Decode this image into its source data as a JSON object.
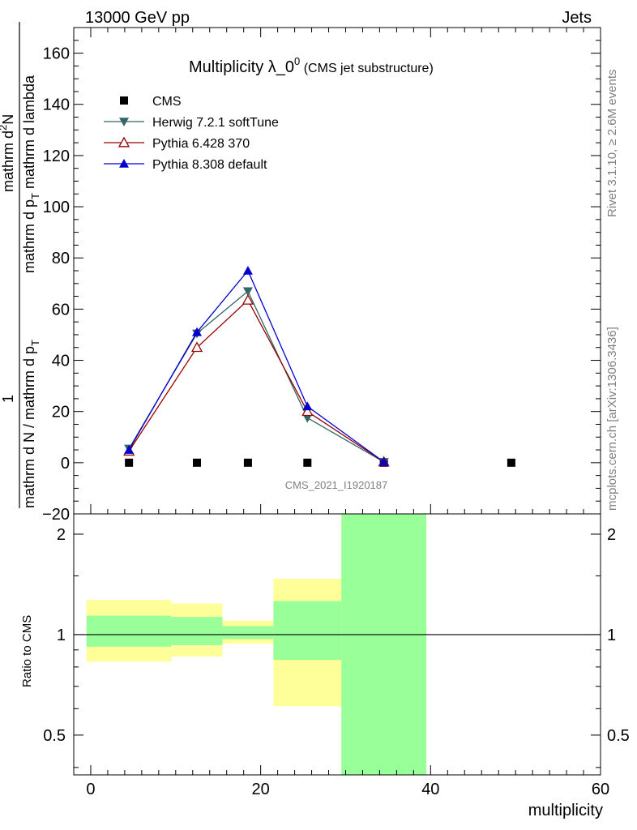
{
  "header": {
    "left": "13000 GeV pp",
    "right": "Jets"
  },
  "side": {
    "rivet": "Rivet 3.1.10, ≥ 2.6M events",
    "mcplots": "mcplots.cern.ch [arXiv:1306.3436]"
  },
  "colors": {
    "cms": "#000000",
    "herwig": "#336666",
    "pythia6": "#990000",
    "pythia8": "#0000cc",
    "band_inner": "#99ff99",
    "band_outer": "#ffff99"
  },
  "chart_data": [
    {
      "type": "line",
      "title_main": "Multiplicity λ_0",
      "title_sup": "0",
      "title_sub": " (CMS jet substructure)",
      "watermark": "CMS_2021_I1920187",
      "ylabel_frac_num": "1",
      "ylabel_frac_den": "mathrm d N / mathrm d p",
      "ylabel_frac_den_sub": "T",
      "ylabel_main": "mathrm d",
      "ylabel_main_sup": "2",
      "ylabel_main_n": "N",
      "ylabel_main_den": "mathrm d p",
      "ylabel_main_den_sub": "T",
      "ylabel_main_den2": " mathrm d lambda",
      "xlim": [
        -2,
        60
      ],
      "ylim": [
        -20,
        170
      ],
      "yticks": [
        {
          "v": -20,
          "label": "−20"
        },
        {
          "v": 0,
          "label": "0"
        },
        {
          "v": 20,
          "label": "20"
        },
        {
          "v": 40,
          "label": "40"
        },
        {
          "v": 60,
          "label": "60"
        },
        {
          "v": 80,
          "label": "80"
        },
        {
          "v": 100,
          "label": "100"
        },
        {
          "v": 120,
          "label": "120"
        },
        {
          "v": 140,
          "label": "140"
        },
        {
          "v": 160,
          "label": "160"
        }
      ],
      "series": [
        {
          "name": "CMS",
          "key": "cms",
          "marker": "square",
          "x": [
            4.5,
            12.5,
            18.5,
            25.5,
            34.5,
            49.5
          ],
          "y": [
            0,
            0,
            0,
            0,
            0,
            0
          ],
          "line": false
        },
        {
          "name": "Herwig 7.2.1 softTune",
          "key": "herwig",
          "marker": "triangle-down",
          "x": [
            4.5,
            12.5,
            18.5,
            25.5,
            34.5
          ],
          "y": [
            5.5,
            50.5,
            67,
            17.5,
            0.3
          ],
          "line": true
        },
        {
          "name": "Pythia 6.428 370",
          "key": "pythia6",
          "marker": "triangle-open",
          "x": [
            4.5,
            12.5,
            18.5,
            25.5,
            34.5
          ],
          "y": [
            4.5,
            45,
            63.5,
            20,
            0.3
          ],
          "line": true
        },
        {
          "name": "Pythia 8.308 default",
          "key": "pythia8",
          "marker": "triangle-up",
          "x": [
            4.5,
            12.5,
            18.5,
            25.5,
            34.5
          ],
          "y": [
            5,
            51,
            75,
            22,
            0.3
          ],
          "line": true
        }
      ]
    },
    {
      "type": "area",
      "ylabel": "Ratio to CMS",
      "xlabel": "multiplicity",
      "xlim": [
        -2,
        60
      ],
      "ylim": [
        0.38,
        2.3
      ],
      "ylog": true,
      "xticks": [
        {
          "v": 0,
          "label": "0"
        },
        {
          "v": 20,
          "label": "20"
        },
        {
          "v": 40,
          "label": "40"
        },
        {
          "v": 60,
          "label": "60"
        }
      ],
      "yticks": [
        {
          "v": 0.5,
          "label": "0.5"
        },
        {
          "v": 1,
          "label": "1"
        },
        {
          "v": 2,
          "label": "2"
        }
      ],
      "bins": [
        {
          "x0": -0.5,
          "x1": 9.5,
          "outer": [
            0.83,
            1.27
          ],
          "inner": [
            0.92,
            1.14
          ]
        },
        {
          "x0": 9.5,
          "x1": 15.5,
          "outer": [
            0.86,
            1.24
          ],
          "inner": [
            0.93,
            1.13
          ]
        },
        {
          "x0": 15.5,
          "x1": 21.5,
          "outer": [
            0.94,
            1.1
          ],
          "inner": [
            0.97,
            1.06
          ]
        },
        {
          "x0": 21.5,
          "x1": 29.5,
          "outer": [
            0.61,
            1.47
          ],
          "inner": [
            0.84,
            1.26
          ]
        },
        {
          "x0": 29.5,
          "x1": 39.5,
          "outer": [
            0.38,
            2.3
          ],
          "inner": [
            0.38,
            2.3
          ]
        }
      ]
    }
  ]
}
